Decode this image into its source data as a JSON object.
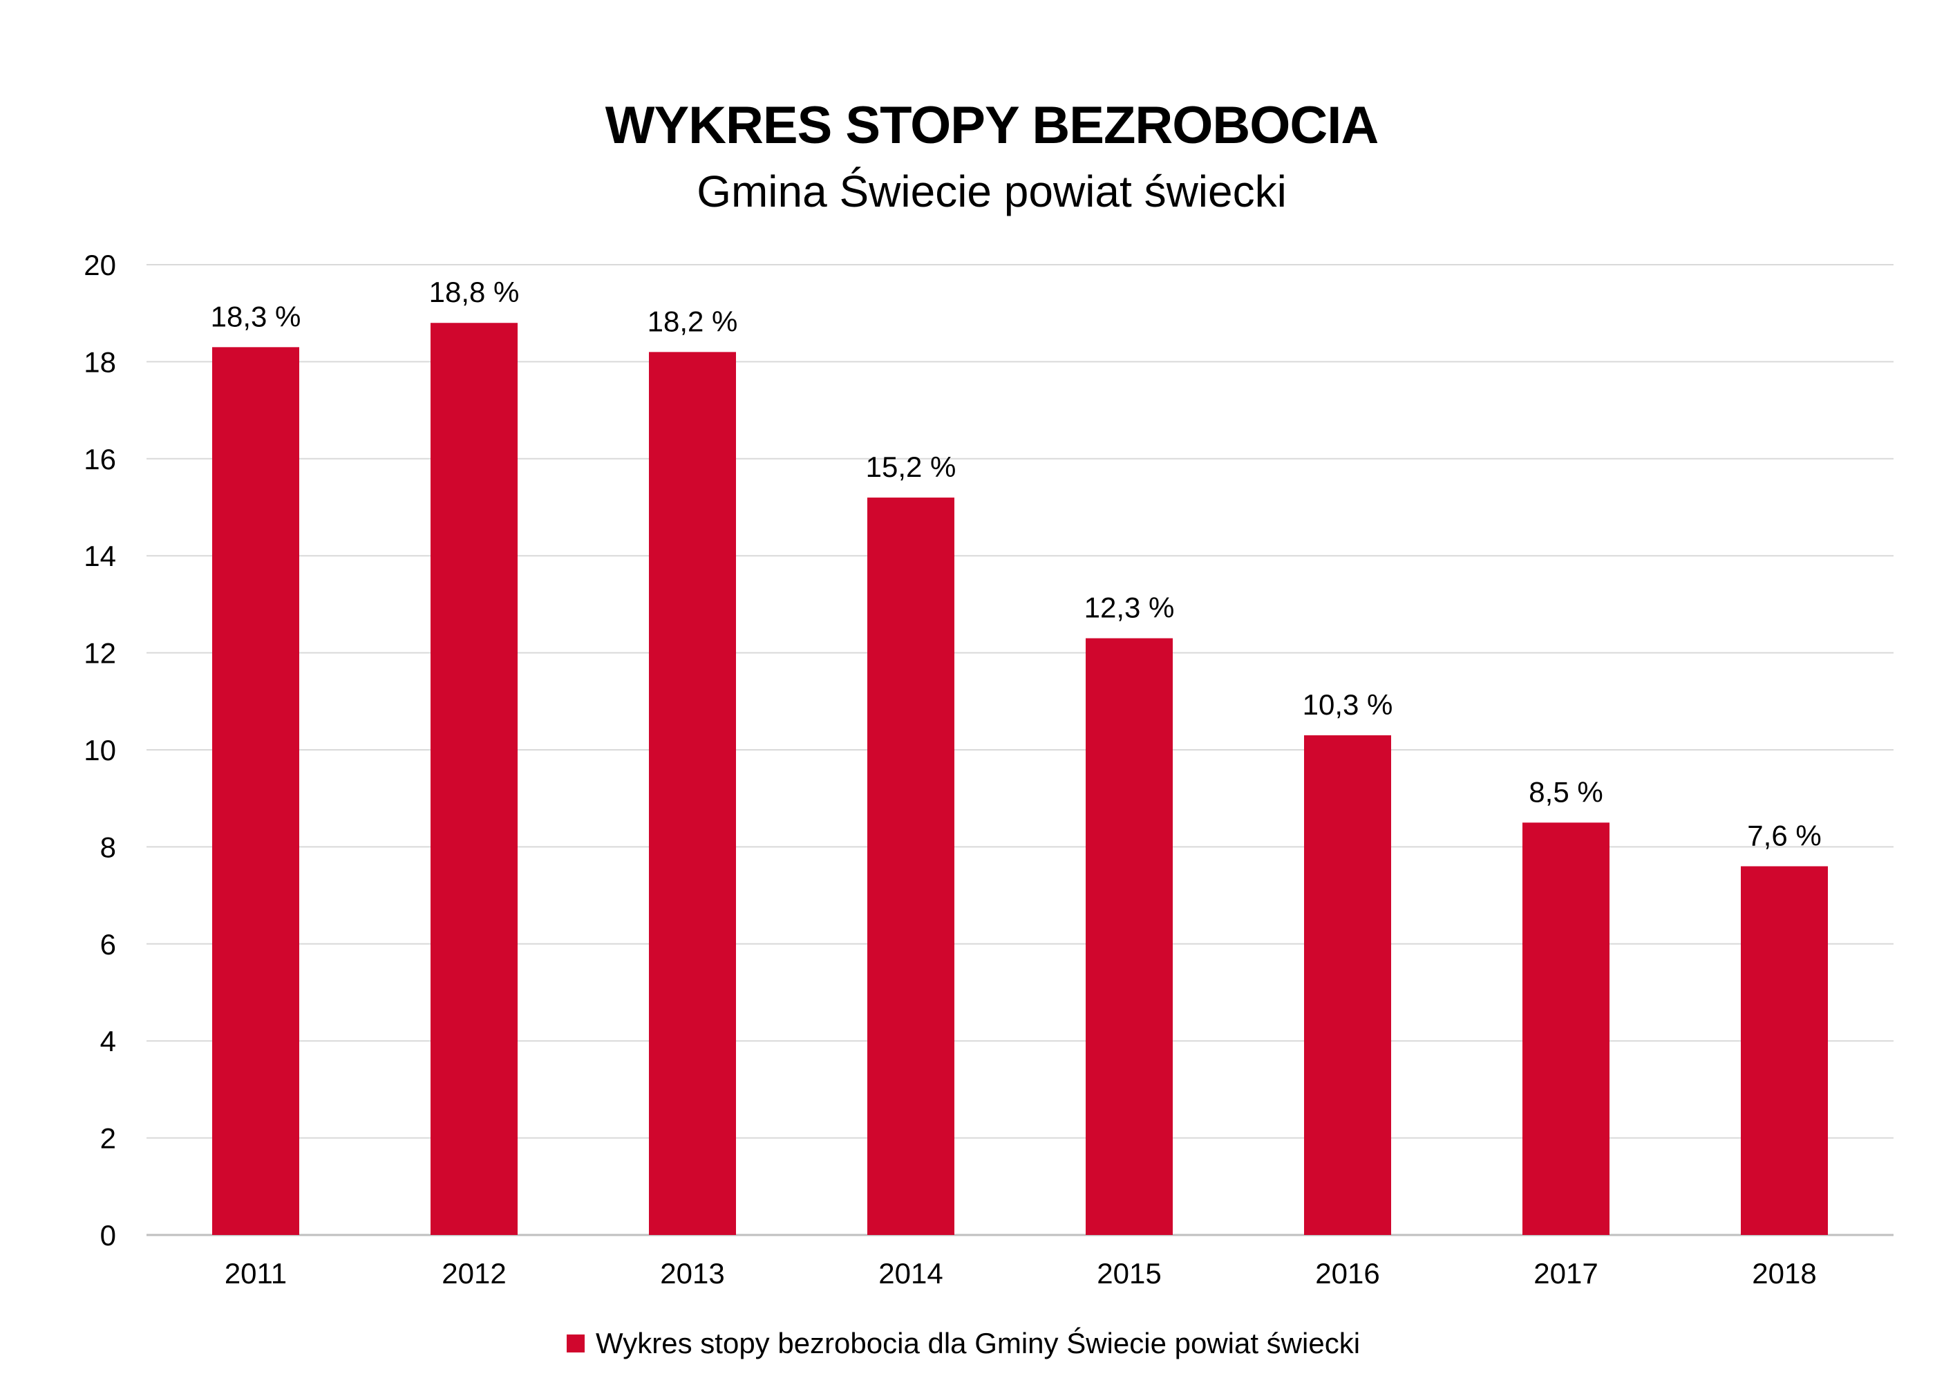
{
  "header": {
    "title": "WYKRES STOPY BEZROBOCIA",
    "subtitle": "Gmina Świecie powiat świecki"
  },
  "chart_data": {
    "type": "bar",
    "title": "WYKRES STOPY BEZROBOCIA",
    "subtitle": "Gmina Świecie powiat świecki",
    "categories": [
      "2011",
      "2012",
      "2013",
      "2014",
      "2015",
      "2016",
      "2017",
      "2018"
    ],
    "series": [
      {
        "name": "Wykres stopy bezrobocia dla Gminy Świecie powiat świecki",
        "values": [
          18.3,
          18.8,
          18.2,
          15.2,
          12.3,
          10.3,
          8.5,
          7.6
        ],
        "labels": [
          "18,3 %",
          "18,8 %",
          "18,2 %",
          "15,2 %",
          "12,3 %",
          "10,3 %",
          "8,5 %",
          "7,6 %"
        ],
        "color": "#d0062d"
      }
    ],
    "ylim": [
      0,
      20
    ],
    "yticks": [
      0,
      2,
      4,
      6,
      8,
      10,
      12,
      14,
      16,
      18,
      20
    ],
    "grid": true,
    "legend_position": "bottom"
  }
}
